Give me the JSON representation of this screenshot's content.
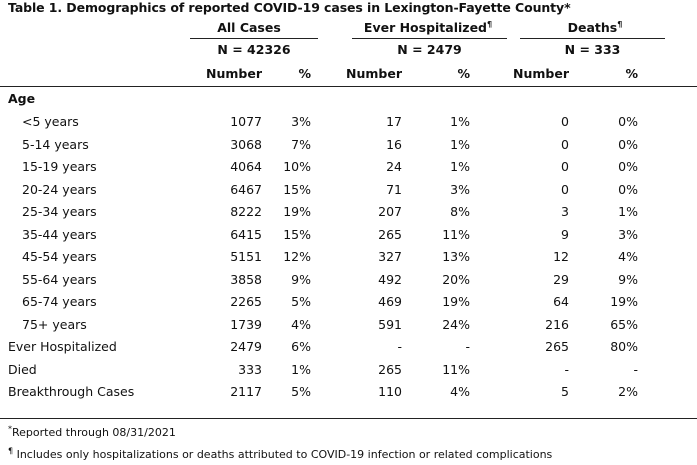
{
  "table": {
    "title": "Table 1. Demographics of reported COVID-19 cases in Lexington-Fayette County",
    "title_mark": "*",
    "groups": [
      {
        "label": "All Cases",
        "mark": "",
        "n_label": "N = 42326"
      },
      {
        "label": "Ever Hospitalized",
        "mark": "¶",
        "n_label": "N = 2479"
      },
      {
        "label": "Deaths",
        "mark": "¶",
        "n_label": "N = 333"
      }
    ],
    "subheaders": [
      "Number",
      "%",
      "Number",
      "%",
      "Number",
      "%"
    ],
    "section_label": "Age",
    "rows": [
      {
        "label": "<5 years",
        "cells": [
          "1077",
          "3%",
          "17",
          "1%",
          "0",
          "0%"
        ]
      },
      {
        "label": "5-14 years",
        "cells": [
          "3068",
          "7%",
          "16",
          "1%",
          "0",
          "0%"
        ]
      },
      {
        "label": "15-19 years",
        "cells": [
          "4064",
          "10%",
          "24",
          "1%",
          "0",
          "0%"
        ]
      },
      {
        "label": "20-24 years",
        "cells": [
          "6467",
          "15%",
          "71",
          "3%",
          "0",
          "0%"
        ]
      },
      {
        "label": "25-34 years",
        "cells": [
          "8222",
          "19%",
          "207",
          "8%",
          "3",
          "1%"
        ]
      },
      {
        "label": "35-44 years",
        "cells": [
          "6415",
          "15%",
          "265",
          "11%",
          "9",
          "3%"
        ]
      },
      {
        "label": "45-54 years",
        "cells": [
          "5151",
          "12%",
          "327",
          "13%",
          "12",
          "4%"
        ]
      },
      {
        "label": "55-64 years",
        "cells": [
          "3858",
          "9%",
          "492",
          "20%",
          "29",
          "9%"
        ]
      },
      {
        "label": "65-74 years",
        "cells": [
          "2265",
          "5%",
          "469",
          "19%",
          "64",
          "19%"
        ]
      },
      {
        "label": "75+ years",
        "cells": [
          "1739",
          "4%",
          "591",
          "24%",
          "216",
          "65%"
        ]
      },
      {
        "label": "Ever Hospitalized",
        "cells": [
          "2479",
          "6%",
          "-",
          "-",
          "265",
          "80%"
        ]
      },
      {
        "label": "Died",
        "cells": [
          "333",
          "1%",
          "265",
          "11%",
          "-",
          "-"
        ]
      },
      {
        "label": "Breakthrough Cases",
        "cells": [
          "2117",
          "5%",
          "110",
          "4%",
          "5",
          "2%"
        ]
      }
    ],
    "footnotes": [
      {
        "mark": "*",
        "text": "Reported through 08/31/2021"
      },
      {
        "mark": "¶",
        "text": " Includes only hospitalizations or deaths attributed to COVID-19 infection or related complications"
      }
    ]
  }
}
